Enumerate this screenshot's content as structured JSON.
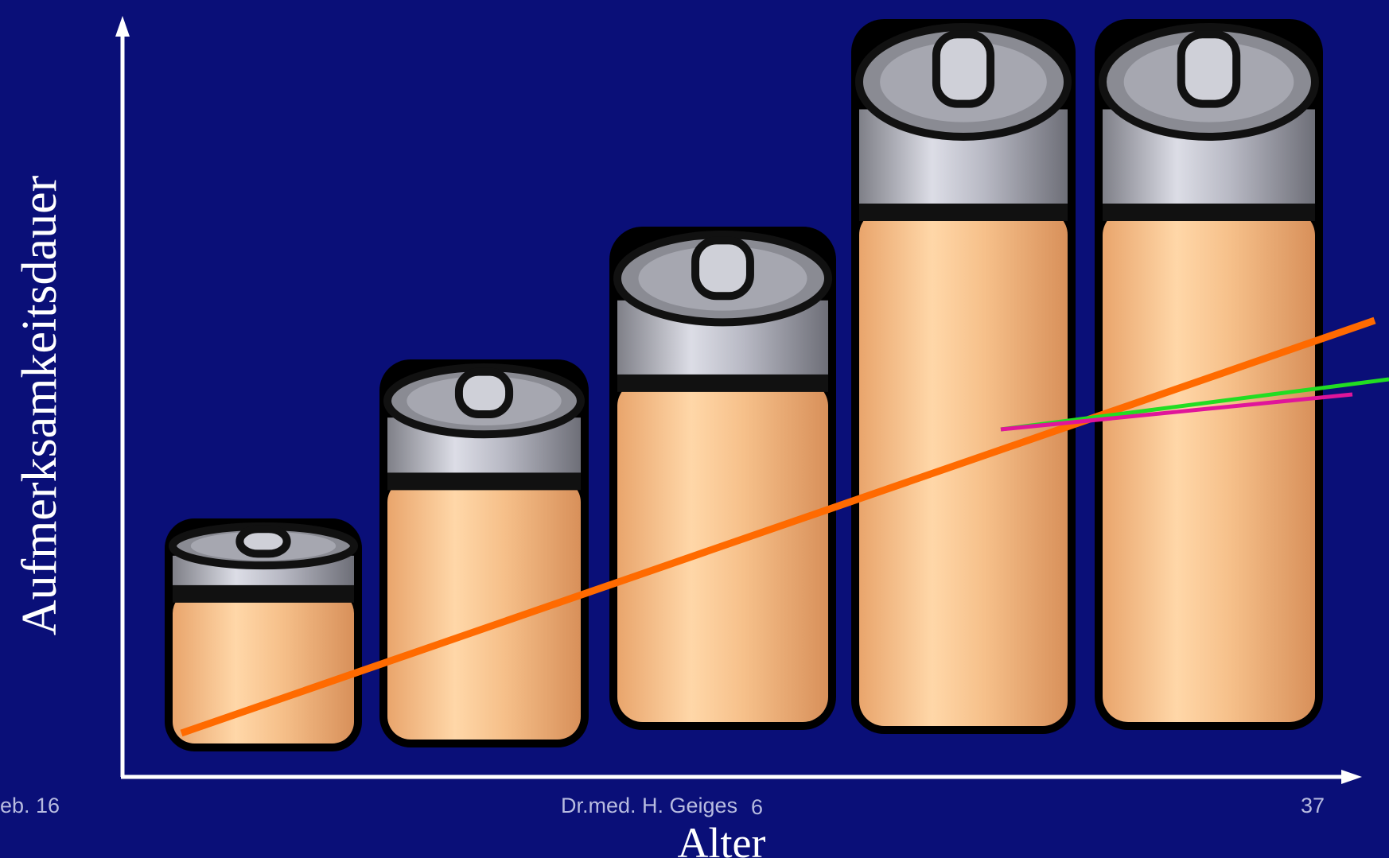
{
  "axes": {
    "y_label": "Aufmerksamkeitsdauer",
    "x_label": "Alter"
  },
  "footer": {
    "date": "eb. 16",
    "author": "Dr.med. H. Geiges",
    "mark": "6",
    "page": "37"
  }
}
